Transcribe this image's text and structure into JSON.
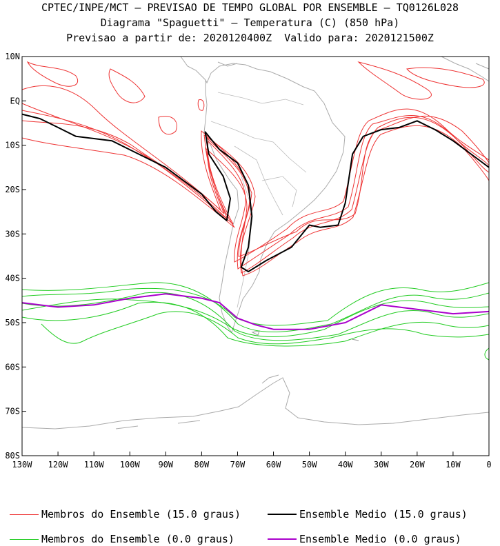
{
  "title": {
    "line1": "CPTEC/INPE/MCT – PREVISAO DE TEMPO GLOBAL POR ENSEMBLE – TQ0126L028",
    "line2": "Diagrama \"Spaguetti\" – Temperatura (C) (850 hPa)",
    "line3": "Previsao a partir de: 2020120400Z  Valido para: 2020121500Z"
  },
  "chart_data": {
    "type": "line",
    "title": "Diagrama \"Spaguetti\" – Temperatura (C) (850 hPa)",
    "xlim": [
      -130,
      0
    ],
    "ylim": [
      -80,
      10
    ],
    "x_ticks": [
      {
        "v": -130,
        "label": "130W"
      },
      {
        "v": -120,
        "label": "120W"
      },
      {
        "v": -110,
        "label": "110W"
      },
      {
        "v": -100,
        "label": "100W"
      },
      {
        "v": -90,
        "label": "90W"
      },
      {
        "v": -80,
        "label": "80W"
      },
      {
        "v": -70,
        "label": "70W"
      },
      {
        "v": -60,
        "label": "60W"
      },
      {
        "v": -50,
        "label": "50W"
      },
      {
        "v": -40,
        "label": "40W"
      },
      {
        "v": -30,
        "label": "30W"
      },
      {
        "v": -20,
        "label": "20W"
      },
      {
        "v": -10,
        "label": "10W"
      },
      {
        "v": 0,
        "label": "0"
      }
    ],
    "y_ticks": [
      {
        "v": 10,
        "label": "10N"
      },
      {
        "v": 0,
        "label": "EQ"
      },
      {
        "v": -10,
        "label": "10S"
      },
      {
        "v": -20,
        "label": "20S"
      },
      {
        "v": -30,
        "label": "30S"
      },
      {
        "v": -40,
        "label": "40S"
      },
      {
        "v": -50,
        "label": "50S"
      },
      {
        "v": -60,
        "label": "60S"
      },
      {
        "v": -70,
        "label": "70S"
      },
      {
        "v": -80,
        "label": "80S"
      }
    ],
    "series": [
      {
        "name": "Ensemble Medio (15.0 graus)",
        "color": "#000000",
        "points": [
          [
            -130,
            -3
          ],
          [
            -125,
            -4
          ],
          [
            -120,
            -6
          ],
          [
            -115,
            -8
          ],
          [
            -110,
            -8.5
          ],
          [
            -105,
            -9
          ],
          [
            -100,
            -11
          ],
          [
            -95,
            -13
          ],
          [
            -90,
            -15
          ],
          [
            -85,
            -18
          ],
          [
            -80,
            -21
          ],
          [
            -76,
            -25
          ],
          [
            -73,
            -27
          ],
          [
            -72,
            -22
          ],
          [
            -74,
            -17
          ],
          [
            -78,
            -12
          ],
          [
            -79,
            -7
          ],
          [
            -75,
            -11
          ],
          [
            -70,
            -14
          ],
          [
            -67,
            -19
          ],
          [
            -66,
            -26
          ],
          [
            -67,
            -33
          ],
          [
            -69,
            -37.5
          ],
          [
            -67,
            -38.5
          ],
          [
            -62,
            -36
          ],
          [
            -55,
            -33
          ],
          [
            -50,
            -28
          ],
          [
            -47,
            -28.5
          ],
          [
            -42,
            -28
          ],
          [
            -40,
            -23
          ],
          [
            -38,
            -12
          ],
          [
            -35,
            -8
          ],
          [
            -30,
            -6.5
          ],
          [
            -25,
            -6
          ],
          [
            -20,
            -4.5
          ],
          [
            -15,
            -6.5
          ],
          [
            -10,
            -9
          ],
          [
            -5,
            -12
          ],
          [
            0,
            -15
          ]
        ]
      },
      {
        "name": "Ensemble Medio (0.0 graus)",
        "color": "#aa00cc",
        "points": [
          [
            -130,
            -45.5
          ],
          [
            -120,
            -46.5
          ],
          [
            -110,
            -46
          ],
          [
            -100,
            -44.5
          ],
          [
            -90,
            -43.5
          ],
          [
            -80,
            -44.5
          ],
          [
            -75,
            -45.5
          ],
          [
            -70,
            -49
          ],
          [
            -65,
            -50.5
          ],
          [
            -60,
            -51.5
          ],
          [
            -50,
            -51.5
          ],
          [
            -40,
            -50
          ],
          [
            -30,
            -46
          ],
          [
            -20,
            -47
          ],
          [
            -10,
            -48
          ],
          [
            0,
            -47.5
          ]
        ]
      }
    ],
    "legend": [
      {
        "label": "Membros do Ensemble (15.0 graus)",
        "color": "#ee3333"
      },
      {
        "label": "Ensemble Medio (15.0 graus)",
        "color": "#000000"
      },
      {
        "label": "Membros do Ensemble (0.0 graus)",
        "color": "#22cc22"
      },
      {
        "label": "Ensemble Medio (0.0 graus)",
        "color": "#aa00cc"
      }
    ]
  }
}
